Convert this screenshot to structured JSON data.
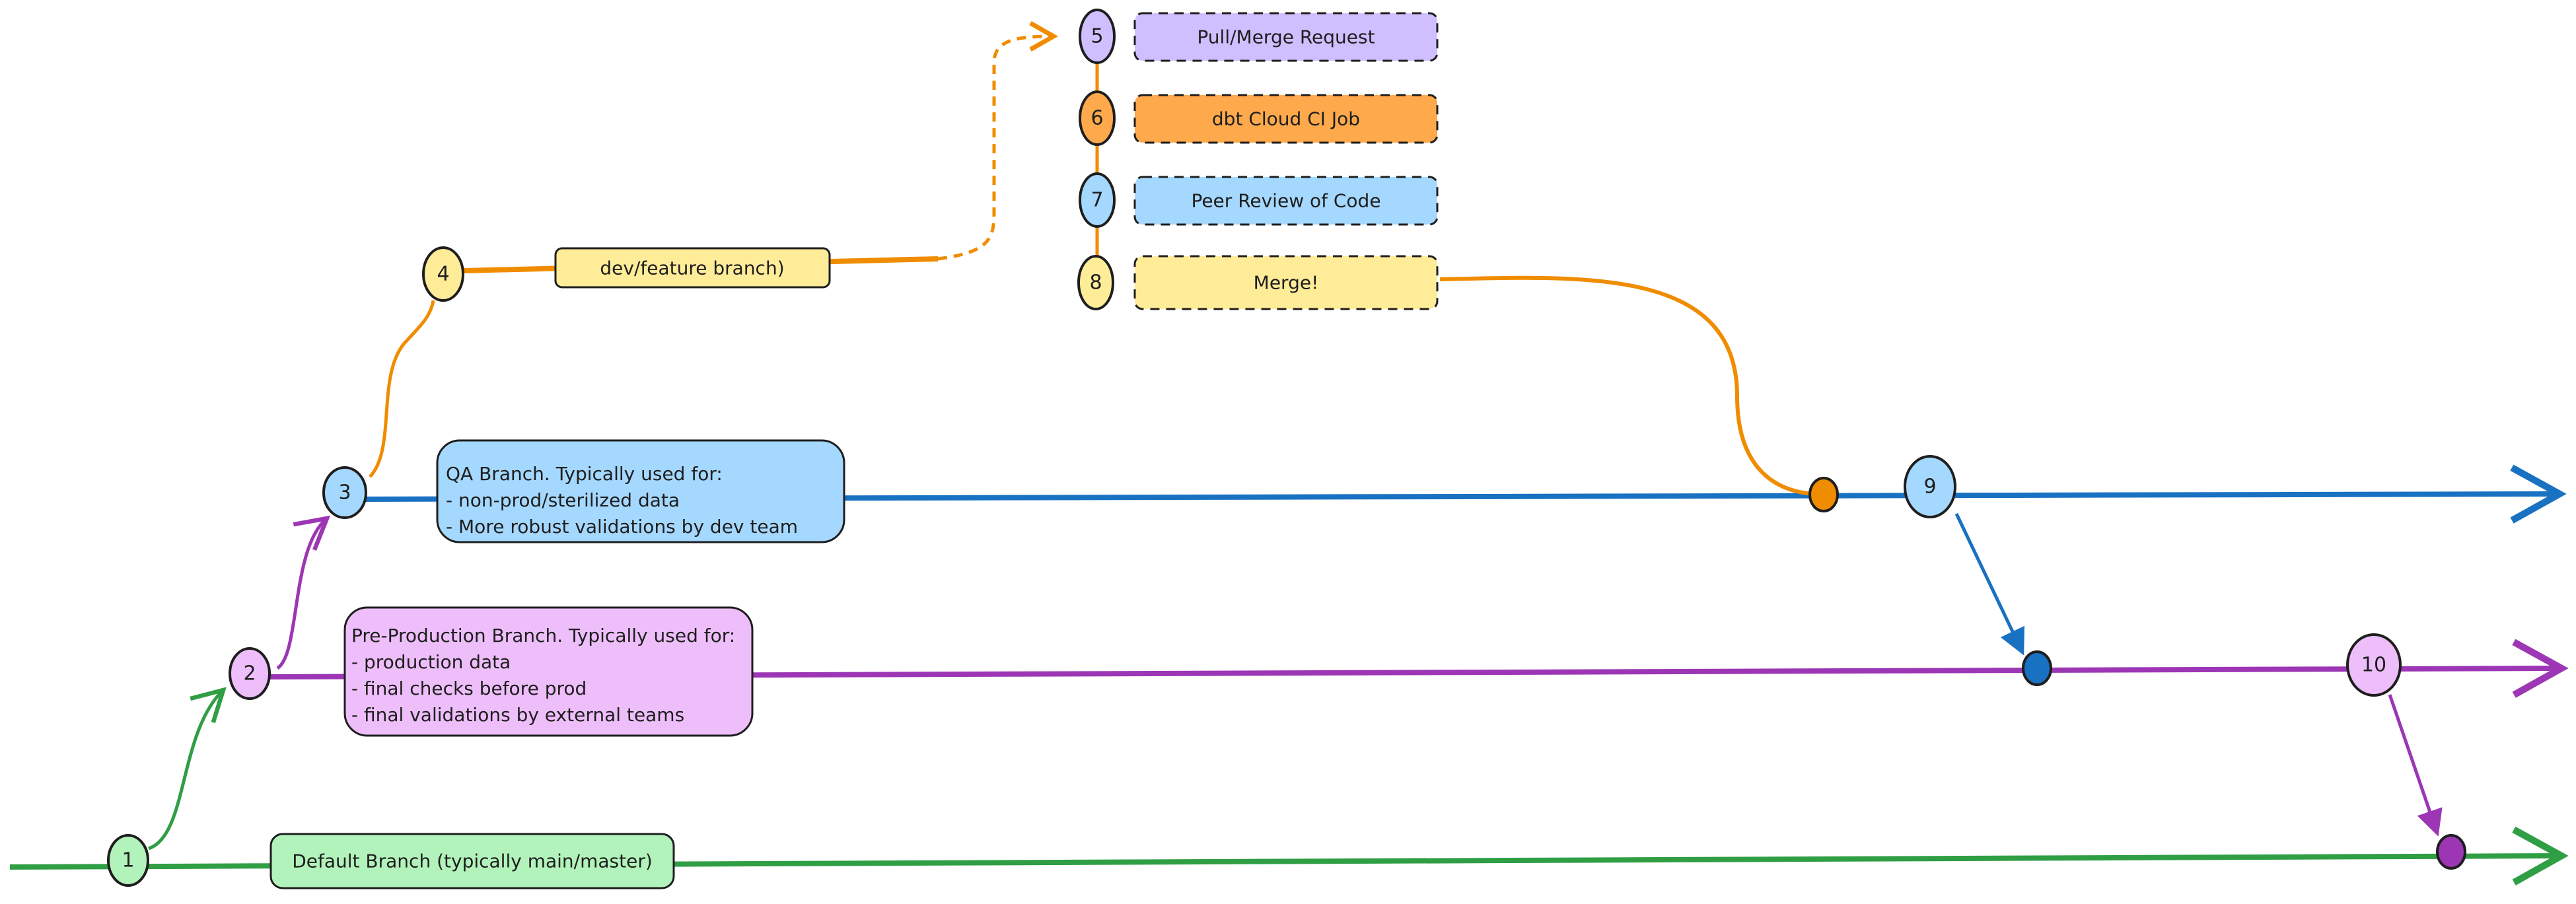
{
  "colors": {
    "default_branch": "#2f9e44",
    "default_fill": "#b2f2bb",
    "preprod_branch": "#9c36b5",
    "preprod_fill": "#eebefa",
    "qa_branch": "#1971c2",
    "qa_fill": "#a5d8ff",
    "feature_branch": "#f08c00",
    "feature_fill": "#ffec99",
    "pr_fill": "#d0bfff",
    "ci_fill": "#ffa94d"
  },
  "nodes": [
    "1",
    "2",
    "3",
    "4",
    "5",
    "6",
    "7",
    "8",
    "9",
    "10"
  ],
  "default_box": {
    "text": "Default Branch (typically main/master)"
  },
  "preprod_box": {
    "lines": [
      "Pre-Production Branch. Typically used for:",
      "- production data",
      "- final checks before prod",
      "- final validations by external teams"
    ]
  },
  "qa_box": {
    "lines": [
      "QA Branch. Typically used for:",
      "- non-prod/sterilized data",
      "- More robust validations by dev team"
    ]
  },
  "feature_box": {
    "text": "dev/feature branch)"
  },
  "steps": [
    {
      "number": "5",
      "text": "Pull/Merge Request"
    },
    {
      "number": "6",
      "text": "dbt Cloud CI Job"
    },
    {
      "number": "7",
      "text": "Peer Review of Code"
    },
    {
      "number": "8",
      "text": "Merge!"
    }
  ]
}
